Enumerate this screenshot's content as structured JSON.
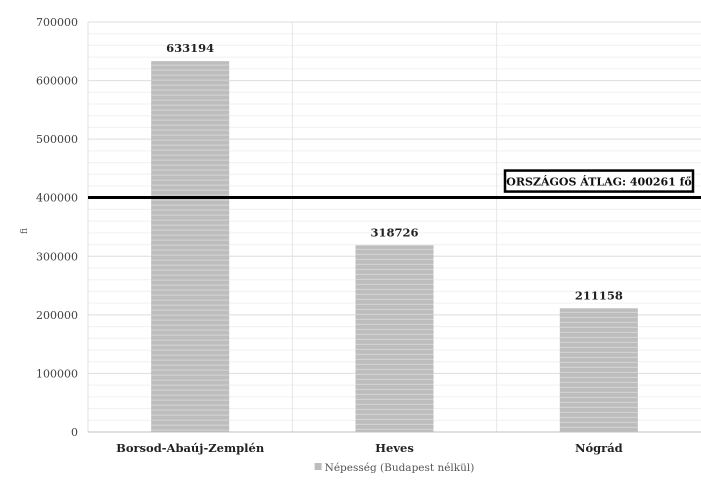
{
  "chart_data": {
    "type": "bar",
    "categories": [
      "Borsod-Abaúj-Zemplén",
      "Heves",
      "Nógrád"
    ],
    "series": [
      {
        "name": "Népesség (Budapest nélkül)",
        "values": [
          633194,
          318726,
          211158
        ],
        "color": "#bdbdbd"
      }
    ],
    "data_labels": [
      "633194",
      "318726",
      "211158"
    ],
    "ylim": [
      0,
      700000
    ],
    "yticks": [
      0,
      100000,
      200000,
      300000,
      400000,
      500000,
      600000,
      700000
    ],
    "ytick_labels": [
      "0",
      "100000",
      "200000",
      "300000",
      "400000",
      "500000",
      "600000",
      "700000"
    ],
    "ylabel": "ﬁ",
    "grid": true,
    "legend_position": "bottom",
    "reference_line": {
      "value": 400261,
      "label": "ORSZÁGOS ÁTLAG: 400261 fő",
      "color": "#000000"
    }
  }
}
